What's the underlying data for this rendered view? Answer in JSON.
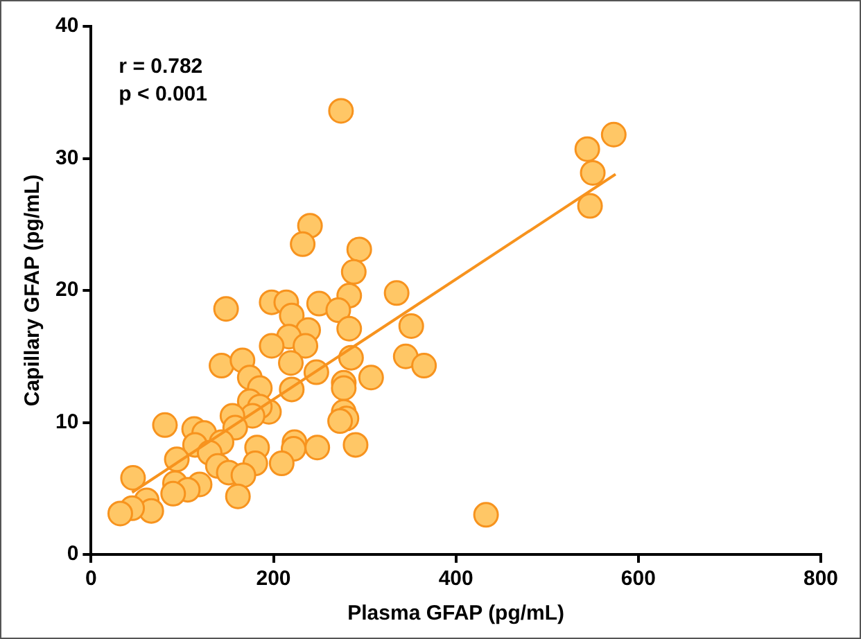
{
  "chart_data": {
    "type": "scatter",
    "xlabel": "Plasma GFAP (pg/mL)",
    "ylabel": "Capillary GFAP (pg/mL)",
    "xlim": [
      0,
      800
    ],
    "xticks": [
      0,
      200,
      400,
      600,
      800
    ],
    "ylim": [
      0,
      40
    ],
    "yticks": [
      0,
      10,
      20,
      30,
      40
    ],
    "grid": false,
    "legend": false,
    "marker": "circle",
    "annotations": [
      "r = 0.782",
      "p < 0.001"
    ],
    "series": [
      {
        "color": "#ffc766",
        "x": [
          274,
          240,
          232,
          294,
          288,
          283,
          335,
          250,
          271,
          283,
          351,
          198,
          214,
          220,
          238,
          217,
          235,
          198,
          285,
          345,
          365,
          219,
          247,
          307,
          277,
          544,
          573,
          550,
          547,
          433,
          148,
          143,
          166,
          174,
          185,
          220,
          277,
          174,
          195,
          185,
          177,
          155,
          158,
          81,
          113,
          124,
          143,
          114,
          130,
          182,
          223,
          222,
          248,
          277,
          280,
          273,
          290,
          94,
          139,
          180,
          209,
          151,
          167,
          92,
          119,
          106,
          90,
          161,
          46,
          61,
          66,
          45,
          32
        ],
        "values": [
          33.6,
          24.9,
          23.5,
          23.1,
          21.4,
          19.6,
          19.8,
          19.0,
          18.5,
          17.1,
          17.3,
          19.1,
          19.1,
          18.1,
          17.0,
          16.5,
          15.8,
          15.8,
          14.9,
          15.0,
          14.3,
          14.5,
          13.8,
          13.4,
          13.0,
          30.7,
          31.8,
          28.9,
          26.4,
          3.0,
          18.6,
          14.3,
          14.7,
          13.4,
          12.6,
          12.5,
          12.6,
          11.6,
          10.8,
          11.2,
          10.5,
          10.5,
          9.6,
          9.8,
          9.5,
          9.2,
          8.5,
          8.3,
          7.7,
          8.1,
          8.5,
          8.0,
          8.1,
          10.8,
          10.3,
          10.1,
          8.3,
          7.2,
          6.7,
          6.9,
          6.9,
          6.2,
          6.0,
          5.4,
          5.3,
          4.9,
          4.6,
          4.4,
          5.8,
          4.1,
          3.3,
          3.5,
          3.1
        ]
      },
      {
        "type": "line",
        "color": "#f7931e",
        "marker": "none",
        "x": [
          45,
          575
        ],
        "values": [
          4.7,
          28.8
        ]
      }
    ]
  }
}
